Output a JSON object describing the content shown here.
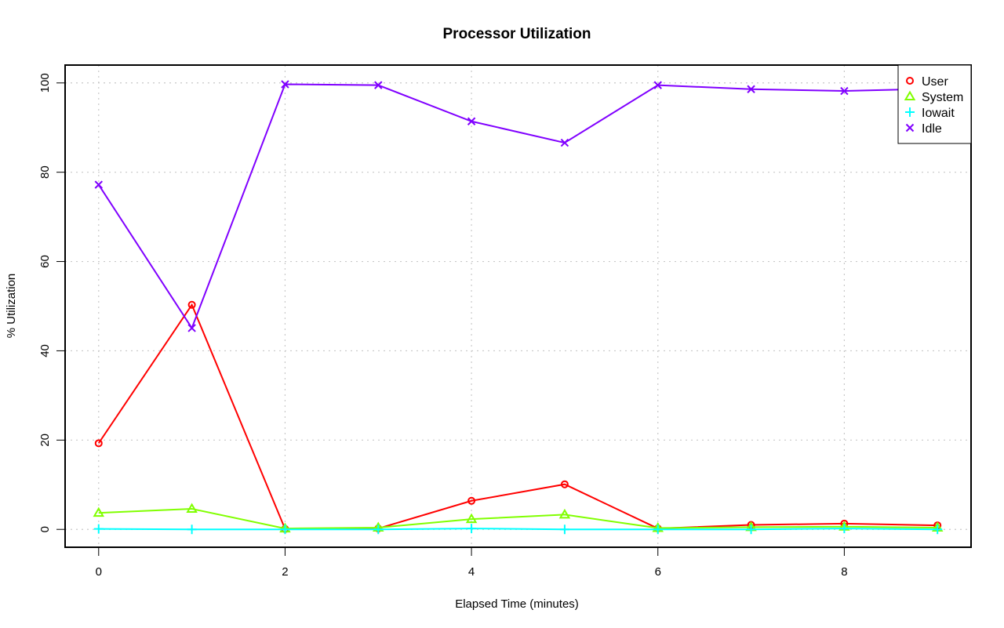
{
  "chart_data": {
    "type": "line",
    "title": "Processor Utilization",
    "xlabel": "Elapsed Time (minutes)",
    "ylabel": "% Utilization",
    "x": [
      0,
      1,
      2,
      3,
      4,
      5,
      6,
      7,
      8,
      9
    ],
    "xlim": [
      -0.36,
      9.36
    ],
    "ylim": [
      -4,
      104
    ],
    "x_ticks": [
      0,
      2,
      4,
      6,
      8
    ],
    "y_ticks": [
      0,
      20,
      40,
      60,
      80,
      100
    ],
    "grid": true,
    "legend_position": "top-right",
    "series": [
      {
        "name": "User",
        "color": "#ff0000",
        "marker": "circle",
        "values": [
          19.3,
          50.3,
          0.1,
          0.2,
          6.4,
          10.1,
          0.2,
          1.0,
          1.3,
          0.9
        ]
      },
      {
        "name": "System",
        "color": "#80ff00",
        "marker": "triangle",
        "values": [
          3.7,
          4.6,
          0.2,
          0.4,
          2.3,
          3.3,
          0.3,
          0.5,
          0.6,
          0.4
        ]
      },
      {
        "name": "Iowait",
        "color": "#00ffff",
        "marker": "plus",
        "values": [
          0.1,
          0.0,
          0.0,
          0.0,
          0.2,
          0.0,
          0.0,
          0.0,
          0.2,
          0.0
        ]
      },
      {
        "name": "Idle",
        "color": "#8000ff",
        "marker": "cross",
        "values": [
          77.2,
          45.1,
          99.7,
          99.5,
          91.4,
          86.6,
          99.5,
          98.6,
          98.2,
          98.7
        ]
      }
    ]
  }
}
